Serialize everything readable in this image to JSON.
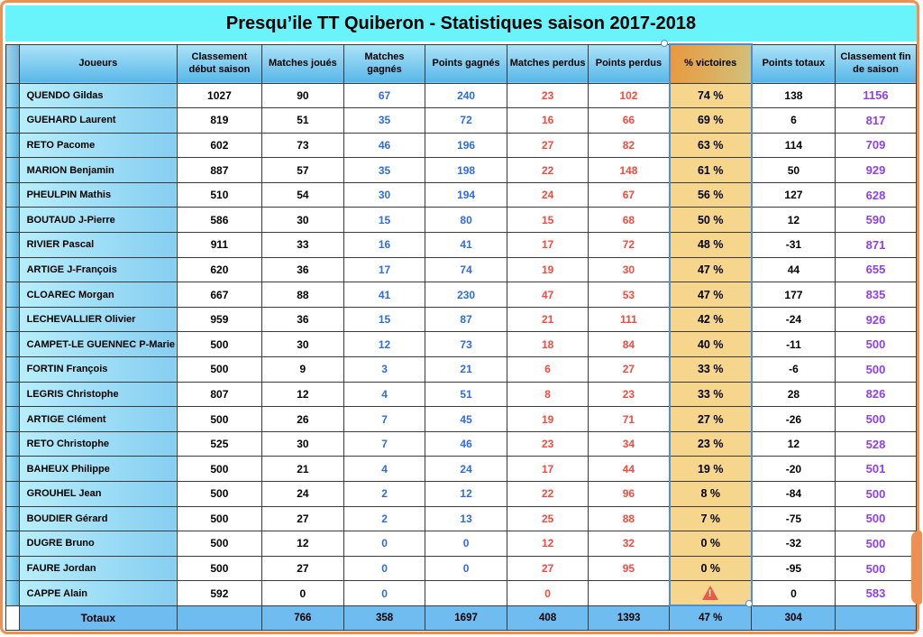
{
  "title": "Presqu’ile TT Quiberon - Statistiques saison 2017-2018",
  "colors": {
    "frame_orange": "#ee9051",
    "title_cyan": "#69f3fa",
    "pct_column_bg": "#f6d68c",
    "totals_row_bg": "#6fbcf1",
    "selection_blue": "#4a8fd8",
    "wins_text_blue": "#2e6be6",
    "losses_text_red": "#f54a3c",
    "final_rank_purple": "#8e41e9",
    "warning_red": "#e45f47"
  },
  "table": {
    "headers": [
      "Joueurs",
      "Classement début saison",
      "Matches joués",
      "Matches gagnés",
      "Points gagnés",
      "Matches perdus",
      "Points perdus",
      "% victoires",
      "Points totaux",
      "Classement fin de saison"
    ],
    "rows": [
      {
        "name": "QUENDO Gildas",
        "values": [
          "1027",
          "90",
          "67",
          "240",
          "23",
          "102",
          "74 %",
          "138",
          "1156"
        ]
      },
      {
        "name": "GUEHARD Laurent",
        "values": [
          "819",
          "51",
          "35",
          "72",
          "16",
          "66",
          "69 %",
          "6",
          "817"
        ]
      },
      {
        "name": "RETO Pacome",
        "values": [
          "602",
          "73",
          "46",
          "196",
          "27",
          "82",
          "63 %",
          "114",
          "709"
        ]
      },
      {
        "name": "MARION Benjamin",
        "values": [
          "887",
          "57",
          "35",
          "198",
          "22",
          "148",
          "61 %",
          "50",
          "929"
        ]
      },
      {
        "name": "PHEULPIN Mathis",
        "values": [
          "510",
          "54",
          "30",
          "194",
          "24",
          "67",
          "56 %",
          "127",
          "628"
        ]
      },
      {
        "name": "BOUTAUD J-Pierre",
        "values": [
          "586",
          "30",
          "15",
          "80",
          "15",
          "68",
          "50 %",
          "12",
          "590"
        ]
      },
      {
        "name": "RIVIER Pascal",
        "values": [
          "911",
          "33",
          "16",
          "41",
          "17",
          "72",
          "48 %",
          "-31",
          "871"
        ]
      },
      {
        "name": "ARTIGE J-François",
        "values": [
          "620",
          "36",
          "17",
          "74",
          "19",
          "30",
          "47 %",
          "44",
          "655"
        ]
      },
      {
        "name": "CLOAREC Morgan",
        "values": [
          "667",
          "88",
          "41",
          "230",
          "47",
          "53",
          "47 %",
          "177",
          "835"
        ]
      },
      {
        "name": "LECHEVALLIER Olivier",
        "values": [
          "959",
          "36",
          "15",
          "87",
          "21",
          "111",
          "42 %",
          "-24",
          "926"
        ]
      },
      {
        "name": "CAMPET-LE GUENNEC P-Marie",
        "values": [
          "500",
          "30",
          "12",
          "73",
          "18",
          "84",
          "40 %",
          "-11",
          "500"
        ]
      },
      {
        "name": "FORTIN François",
        "values": [
          "500",
          "9",
          "3",
          "21",
          "6",
          "27",
          "33 %",
          "-6",
          "500"
        ]
      },
      {
        "name": "LEGRIS Christophe",
        "values": [
          "807",
          "12",
          "4",
          "51",
          "8",
          "23",
          "33 %",
          "28",
          "826"
        ]
      },
      {
        "name": "ARTIGE Clément",
        "values": [
          "500",
          "26",
          "7",
          "45",
          "19",
          "71",
          "27 %",
          "-26",
          "500"
        ]
      },
      {
        "name": "RETO Christophe",
        "values": [
          "525",
          "30",
          "7",
          "46",
          "23",
          "34",
          "23 %",
          "12",
          "528"
        ]
      },
      {
        "name": "BAHEUX Philippe",
        "values": [
          "500",
          "21",
          "4",
          "24",
          "17",
          "44",
          "19 %",
          "-20",
          "501"
        ]
      },
      {
        "name": "GROUHEL Jean",
        "values": [
          "500",
          "24",
          "2",
          "12",
          "22",
          "96",
          "8 %",
          "-84",
          "500"
        ]
      },
      {
        "name": "BOUDIER Gérard",
        "values": [
          "500",
          "27",
          "2",
          "13",
          "25",
          "88",
          "7 %",
          "-75",
          "500"
        ]
      },
      {
        "name": "DUGRE Bruno",
        "values": [
          "500",
          "12",
          "0",
          "0",
          "12",
          "32",
          "0 %",
          "-32",
          "500"
        ]
      },
      {
        "name": "FAURE Jordan",
        "values": [
          "500",
          "27",
          "0",
          "0",
          "27",
          "95",
          "0 %",
          "-95",
          "500"
        ]
      },
      {
        "name": "CAPPE Alain",
        "values": [
          "592",
          "0",
          "0",
          "",
          "0",
          "",
          "",
          "0",
          "583"
        ],
        "warning": true
      }
    ],
    "totals": {
      "label": "Totaux",
      "values": [
        "",
        "766",
        "358",
        "1697",
        "408",
        "1393",
        "47 %",
        "304",
        ""
      ]
    }
  },
  "icons": {
    "warning": "warning-triangle-icon",
    "selection_handles": "selection-handle"
  }
}
